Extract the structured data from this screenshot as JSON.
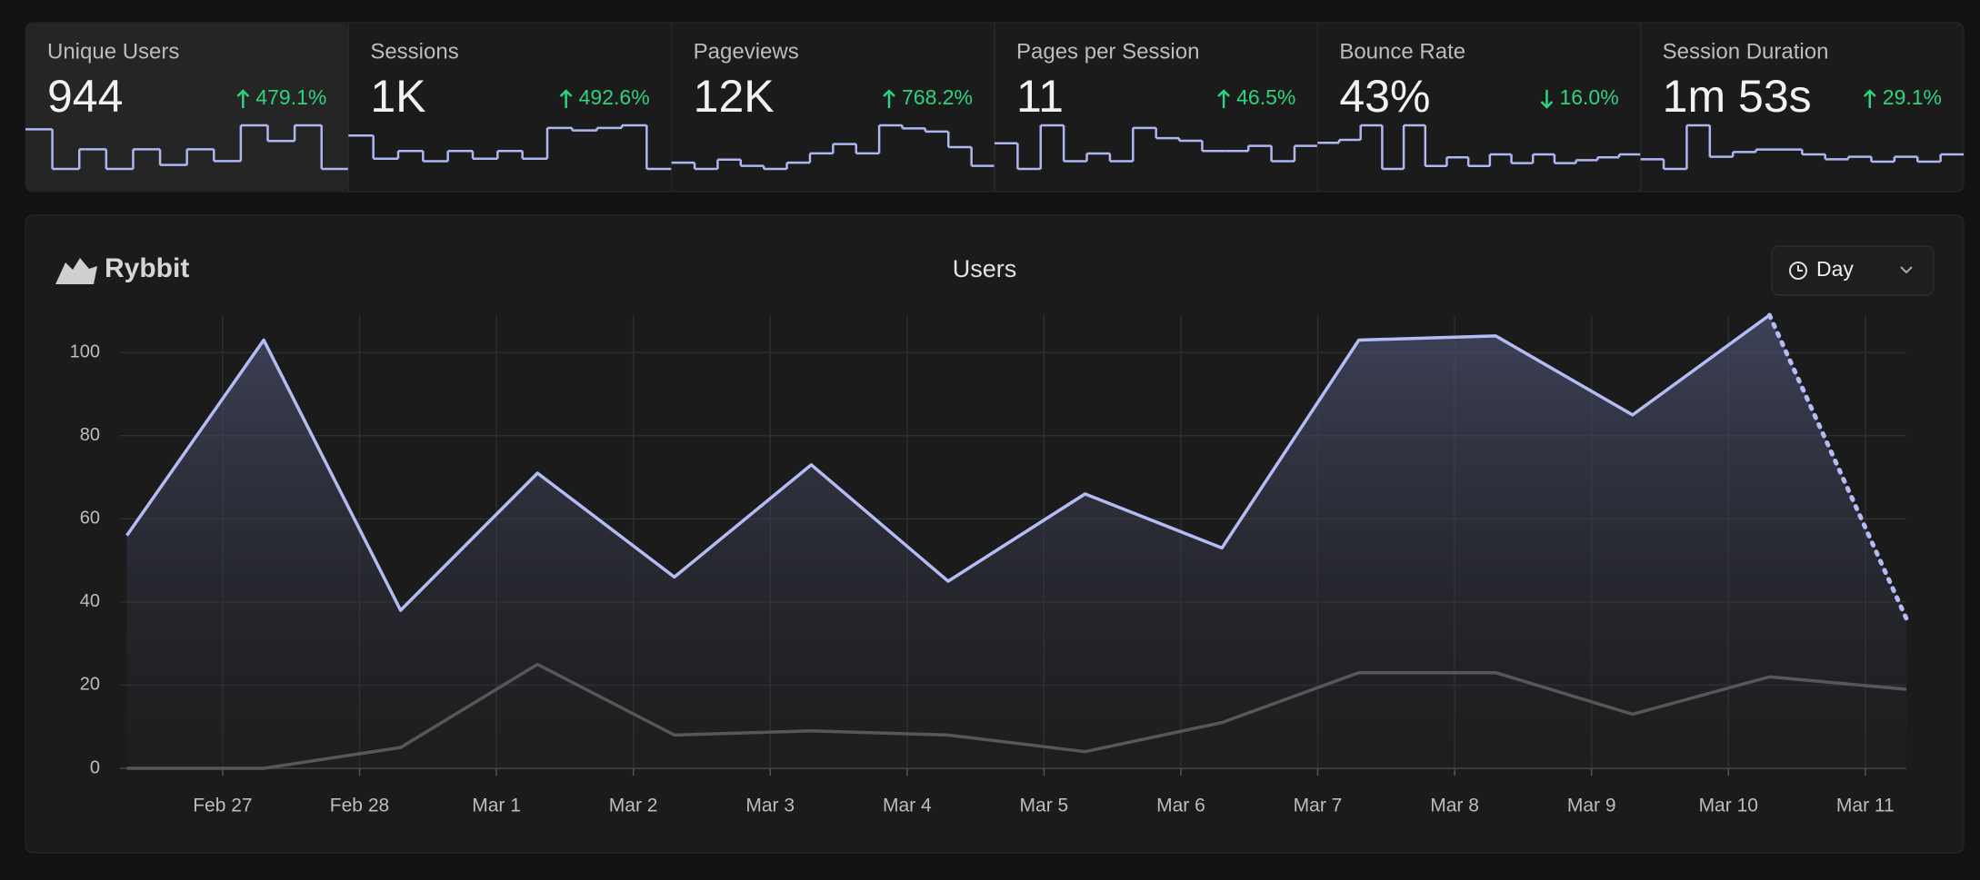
{
  "cards": [
    {
      "title": "Unique Users",
      "value": "944",
      "change": "479.1%",
      "direction": "up",
      "spark": [
        91,
        0,
        45,
        0,
        45,
        9,
        45,
        18,
        100,
        64,
        100,
        0
      ]
    },
    {
      "title": "Sessions",
      "value": "1K",
      "change": "492.6%",
      "direction": "up",
      "spark": [
        70,
        25,
        40,
        20,
        40,
        25,
        40,
        25,
        85,
        80,
        85,
        90,
        5
      ]
    },
    {
      "title": "Pageviews",
      "value": "12K",
      "change": "768.2%",
      "direction": "up",
      "spark": [
        30,
        20,
        35,
        25,
        20,
        30,
        45,
        60,
        45,
        90,
        85,
        80,
        55,
        25
      ]
    },
    {
      "title": "Pages per Session",
      "value": "11",
      "change": "46.5%",
      "direction": "up",
      "spark": [
        60,
        10,
        95,
        25,
        40,
        25,
        90,
        70,
        65,
        45,
        45,
        55,
        25,
        55
      ]
    },
    {
      "title": "Bounce Rate",
      "value": "43%",
      "change": "16.0%",
      "direction": "down",
      "spark": [
        65,
        70,
        95,
        20,
        95,
        25,
        40,
        25,
        45,
        30,
        45,
        30,
        35,
        40,
        45
      ]
    },
    {
      "title": "Session Duration",
      "value": "1m 53s",
      "change": "29.1%",
      "direction": "up",
      "spark": [
        30,
        10,
        100,
        35,
        45,
        50,
        50,
        40,
        30,
        35,
        25,
        35,
        25,
        40
      ]
    }
  ],
  "panel": {
    "brand": "Rybbit",
    "interval": "Day"
  },
  "chart_data": {
    "type": "line",
    "title": "Users",
    "x": [
      0.3,
      1.3,
      2.3,
      3.3,
      4.3,
      5.3,
      6.3,
      7.3,
      8.3,
      9.3,
      10.3,
      11.3,
      12.3,
      13.3
    ],
    "xlim": [
      0.25,
      13.3
    ],
    "xticks": [
      {
        "value": 1,
        "label": "Feb 27"
      },
      {
        "value": 2,
        "label": "Feb 28"
      },
      {
        "value": 3,
        "label": "Mar 1"
      },
      {
        "value": 4,
        "label": "Mar 2"
      },
      {
        "value": 5,
        "label": "Mar 3"
      },
      {
        "value": 6,
        "label": "Mar 4"
      },
      {
        "value": 7,
        "label": "Mar 5"
      },
      {
        "value": 8,
        "label": "Mar 6"
      },
      {
        "value": 9,
        "label": "Mar 7"
      },
      {
        "value": 10,
        "label": "Mar 8"
      },
      {
        "value": 11,
        "label": "Mar 9"
      },
      {
        "value": 12,
        "label": "Mar 10"
      },
      {
        "value": 13,
        "label": "Mar 11"
      }
    ],
    "ylim": [
      0,
      109
    ],
    "yticks": [
      0,
      20,
      40,
      60,
      80,
      100
    ],
    "grid": true,
    "series": [
      {
        "color": "#b3bcf5",
        "values": [
          56,
          103,
          38,
          71,
          46,
          73,
          45,
          66,
          53,
          103,
          104,
          85,
          109,
          36
        ],
        "dotted_last": true,
        "area": true
      },
      {
        "color": "#575757",
        "values": [
          0,
          0,
          5,
          25,
          8,
          9,
          8,
          4,
          11,
          23,
          23,
          13,
          22,
          19
        ]
      }
    ]
  }
}
